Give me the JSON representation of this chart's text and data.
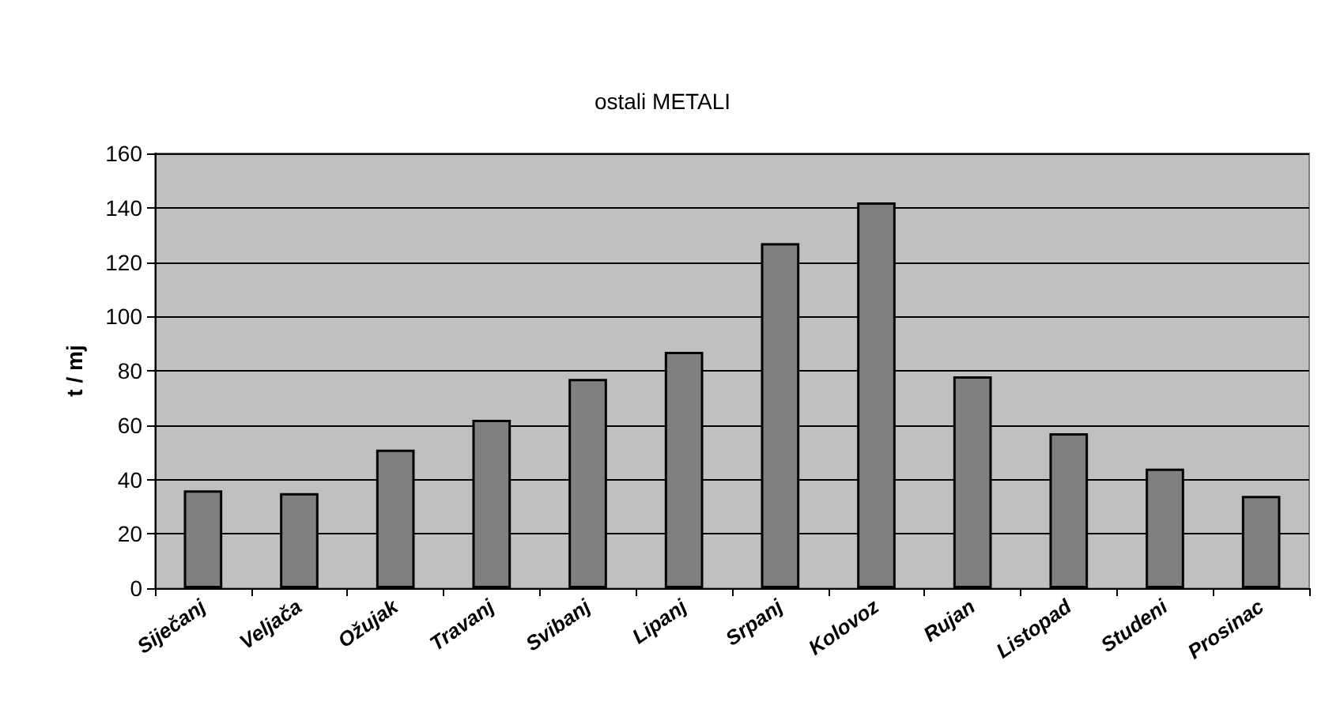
{
  "chart_data": {
    "type": "bar",
    "title": "ostali METALI",
    "ylabel": "t / mj",
    "categories": [
      "Siječanj",
      "Veljača",
      "Ožujak",
      "Travanj",
      "Svibanj",
      "Lipanj",
      "Srpanj",
      "Kolovoz",
      "Rujan",
      "Listopad",
      "Studeni",
      "Prosinac"
    ],
    "values": [
      36,
      35,
      51,
      62,
      77,
      87,
      127,
      142,
      78,
      57,
      44,
      34
    ],
    "color": "#808080",
    "ylim": [
      0,
      160
    ],
    "yticks": [
      0,
      20,
      40,
      60,
      80,
      100,
      120,
      140,
      160
    ],
    "grid": "y"
  }
}
